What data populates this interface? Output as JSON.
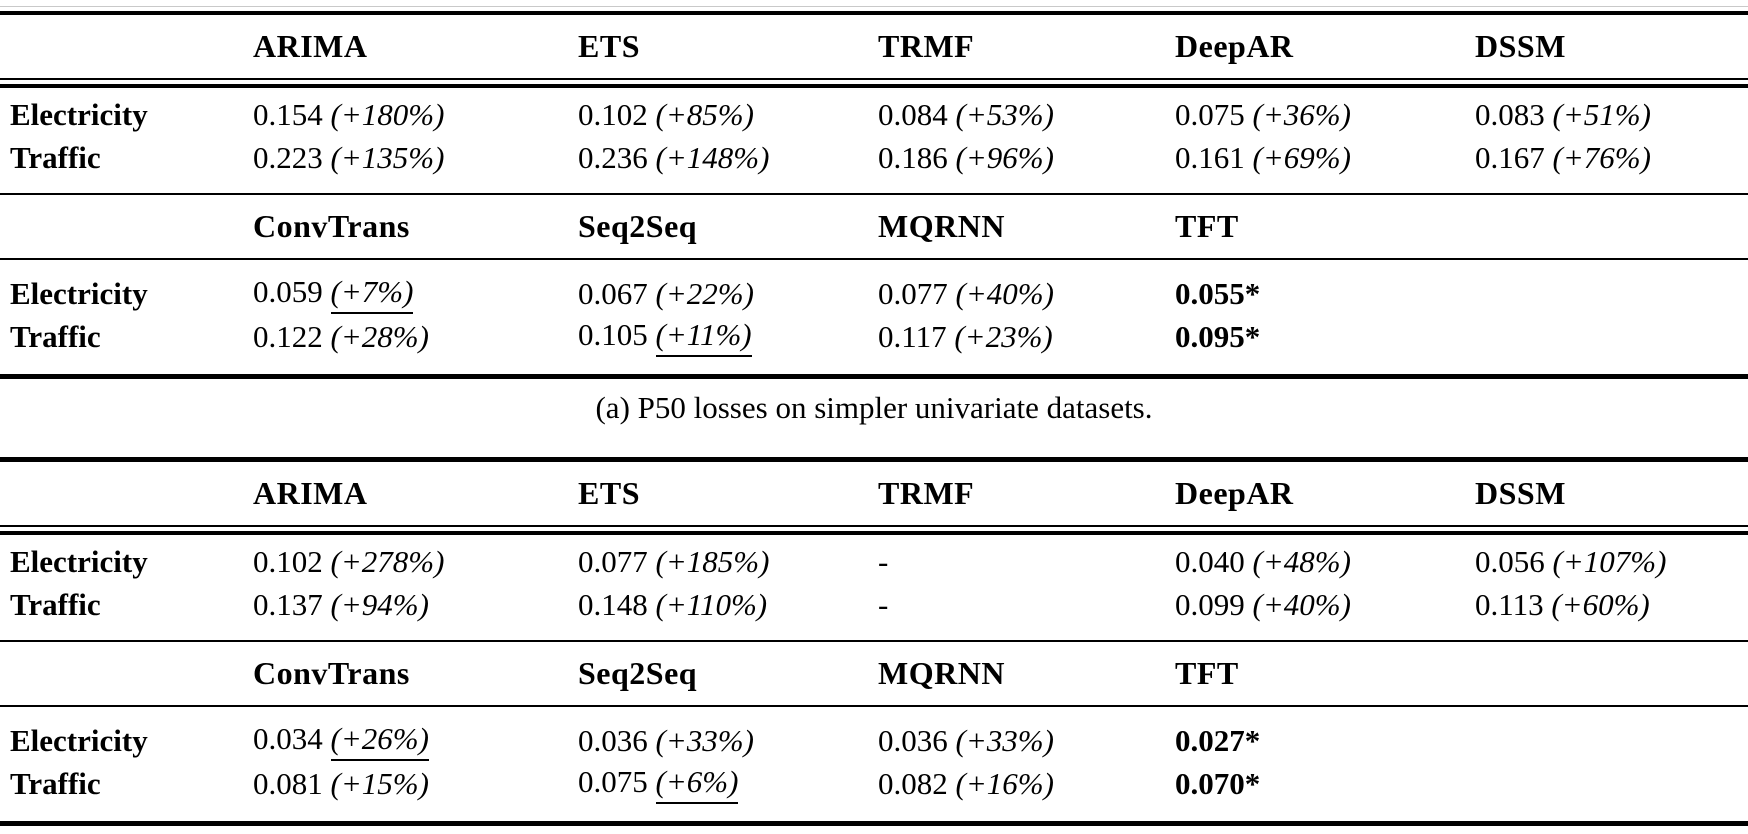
{
  "page": {
    "background_color": "#ffffff",
    "text_color": "#000000",
    "rule_color": "#000000"
  },
  "tables": [
    {
      "name": "p50-losses-univariate",
      "caption": "(a) P50 losses on simpler univariate datasets.",
      "sections": [
        {
          "header": [
            "",
            "ARIMA",
            "ETS",
            "TRMF",
            "DeepAR",
            "DSSM"
          ],
          "rows": [
            {
              "label": "Electricity",
              "cells": [
                {
                  "v": "0.154",
                  "p": "(+180%)"
                },
                {
                  "v": "0.102",
                  "p": "(+85%)"
                },
                {
                  "v": "0.084",
                  "p": "(+53%)"
                },
                {
                  "v": "0.075",
                  "p": "(+36%)"
                },
                {
                  "v": "0.083",
                  "p": "(+51%)"
                }
              ]
            },
            {
              "label": "Traffic",
              "cells": [
                {
                  "v": "0.223",
                  "p": "(+135%)"
                },
                {
                  "v": "0.236",
                  "p": "(+148%)"
                },
                {
                  "v": "0.186",
                  "p": "(+96%)"
                },
                {
                  "v": "0.161",
                  "p": "(+69%)"
                },
                {
                  "v": "0.167",
                  "p": "(+76%)"
                }
              ]
            }
          ]
        },
        {
          "header": [
            "",
            "ConvTrans",
            "Seq2Seq",
            "MQRNN",
            "TFT",
            ""
          ],
          "rows": [
            {
              "label": "Electricity",
              "cells": [
                {
                  "v": "0.059",
                  "p": "(+7%)",
                  "u": true
                },
                {
                  "v": "0.067",
                  "p": "(+22%)"
                },
                {
                  "v": "0.077",
                  "p": "(+40%)"
                },
                {
                  "v": "0.055*",
                  "b": true
                },
                {}
              ]
            },
            {
              "label": "Traffic",
              "cells": [
                {
                  "v": "0.122",
                  "p": "(+28%)"
                },
                {
                  "v": "0.105",
                  "p": "(+11%)",
                  "u": true
                },
                {
                  "v": "0.117",
                  "p": "(+23%)"
                },
                {
                  "v": "0.095*",
                  "b": true
                },
                {}
              ]
            }
          ]
        }
      ]
    },
    {
      "name": "p90-losses-univariate",
      "caption": "",
      "sections": [
        {
          "header": [
            "",
            "ARIMA",
            "ETS",
            "TRMF",
            "DeepAR",
            "DSSM"
          ],
          "rows": [
            {
              "label": "Electricity",
              "cells": [
                {
                  "v": "0.102",
                  "p": "(+278%)"
                },
                {
                  "v": "0.077",
                  "p": "(+185%)"
                },
                {
                  "v": "-"
                },
                {
                  "v": "0.040",
                  "p": "(+48%)"
                },
                {
                  "v": "0.056",
                  "p": "(+107%)"
                }
              ]
            },
            {
              "label": "Traffic",
              "cells": [
                {
                  "v": "0.137",
                  "p": "(+94%)"
                },
                {
                  "v": "0.148",
                  "p": "(+110%)"
                },
                {
                  "v": "-"
                },
                {
                  "v": "0.099",
                  "p": "(+40%)"
                },
                {
                  "v": "0.113",
                  "p": "(+60%)"
                }
              ]
            }
          ]
        },
        {
          "header": [
            "",
            "ConvTrans",
            "Seq2Seq",
            "MQRNN",
            "TFT",
            ""
          ],
          "rows": [
            {
              "label": "Electricity",
              "cells": [
                {
                  "v": "0.034",
                  "p": "(+26%)",
                  "u": true
                },
                {
                  "v": "0.036",
                  "p": "(+33%)"
                },
                {
                  "v": "0.036",
                  "p": "(+33%)"
                },
                {
                  "v": "0.027*",
                  "b": true
                },
                {}
              ]
            },
            {
              "label": "Traffic",
              "cells": [
                {
                  "v": "0.081",
                  "p": "(+15%)"
                },
                {
                  "v": "0.075",
                  "p": "(+6%)",
                  "u": true
                },
                {
                  "v": "0.082",
                  "p": "(+16%)"
                },
                {
                  "v": "0.070*",
                  "b": true
                },
                {}
              ]
            }
          ]
        }
      ]
    }
  ]
}
